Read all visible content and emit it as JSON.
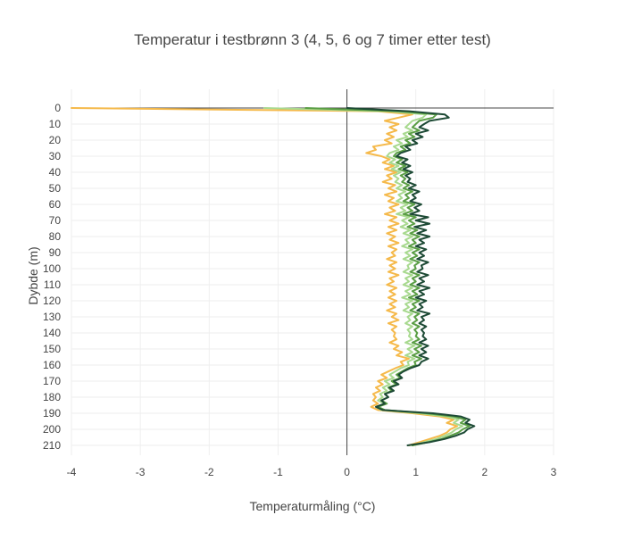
{
  "chart_data": {
    "type": "line",
    "title": "Temperatur i testbrønn 3 (4, 5, 6 og 7 timer etter test)",
    "xlabel": "Temperaturmåling (°C)",
    "ylabel": "Dybde (m)",
    "xlim": [
      -4,
      3
    ],
    "ylim": [
      0,
      215
    ],
    "y_reversed": true,
    "grid": true,
    "legend": "none",
    "x_ticks": [
      "-4",
      "-3",
      "-2",
      "-1",
      "0",
      "1",
      "2",
      "3"
    ],
    "y_ticks": [
      "0",
      "10",
      "20",
      "30",
      "40",
      "50",
      "60",
      "70",
      "80",
      "90",
      "100",
      "110",
      "120",
      "130",
      "140",
      "150",
      "160",
      "170",
      "180",
      "190",
      "200",
      "210"
    ],
    "colors": [
      "#f5b94a",
      "#a8d98f",
      "#5a9e45",
      "#1d4a35"
    ],
    "series": [
      {
        "color": "#f5b94a",
        "depth": [
          0,
          2,
          4,
          6,
          8,
          10,
          12,
          14,
          16,
          18,
          20,
          22,
          24,
          26,
          28,
          30,
          32,
          34,
          36,
          38,
          40,
          42,
          44,
          46,
          48,
          50,
          52,
          54,
          56,
          58,
          60,
          62,
          64,
          66,
          68,
          70,
          72,
          74,
          76,
          78,
          80,
          82,
          84,
          86,
          88,
          90,
          92,
          94,
          96,
          98,
          100,
          102,
          104,
          106,
          108,
          110,
          112,
          114,
          116,
          118,
          120,
          122,
          124,
          126,
          128,
          130,
          132,
          134,
          136,
          138,
          140,
          142,
          144,
          146,
          148,
          150,
          152,
          154,
          156,
          158,
          160,
          162,
          164,
          166,
          168,
          170,
          172,
          174,
          176,
          178,
          180,
          182,
          184,
          186,
          188,
          190,
          192,
          194,
          196,
          198,
          200,
          202,
          204,
          206,
          208,
          210
        ],
        "temp": [
          -4.0,
          0.45,
          0.95,
          0.75,
          0.55,
          0.75,
          0.62,
          0.72,
          0.58,
          0.68,
          0.55,
          0.65,
          0.38,
          0.42,
          0.28,
          0.5,
          0.62,
          0.52,
          0.68,
          0.55,
          0.72,
          0.58,
          0.65,
          0.52,
          0.7,
          0.6,
          0.72,
          0.55,
          0.68,
          0.6,
          0.75,
          0.62,
          0.7,
          0.55,
          0.72,
          0.62,
          0.75,
          0.6,
          0.72,
          0.58,
          0.7,
          0.62,
          0.75,
          0.6,
          0.72,
          0.65,
          0.7,
          0.58,
          0.72,
          0.62,
          0.7,
          0.6,
          0.75,
          0.62,
          0.68,
          0.58,
          0.72,
          0.62,
          0.7,
          0.6,
          0.72,
          0.62,
          0.7,
          0.58,
          0.72,
          0.65,
          0.75,
          0.6,
          0.72,
          0.65,
          0.7,
          0.68,
          0.72,
          0.62,
          0.75,
          0.68,
          0.8,
          0.72,
          0.9,
          0.78,
          0.82,
          0.7,
          0.6,
          0.5,
          0.58,
          0.45,
          0.52,
          0.42,
          0.48,
          0.38,
          0.42,
          0.38,
          0.45,
          0.35,
          0.45,
          0.95,
          1.35,
          1.55,
          1.45,
          1.6,
          1.5,
          1.45,
          1.35,
          1.2,
          1.05,
          0.9
        ]
      },
      {
        "color": "#a8d98f",
        "depth": [
          0,
          2,
          4,
          6,
          8,
          10,
          12,
          14,
          16,
          18,
          20,
          22,
          24,
          26,
          28,
          30,
          32,
          34,
          36,
          38,
          40,
          42,
          44,
          46,
          48,
          50,
          52,
          54,
          56,
          58,
          60,
          62,
          64,
          66,
          68,
          70,
          72,
          74,
          76,
          78,
          80,
          82,
          84,
          86,
          88,
          90,
          92,
          94,
          96,
          98,
          100,
          102,
          104,
          106,
          108,
          110,
          112,
          114,
          116,
          118,
          120,
          122,
          124,
          126,
          128,
          130,
          132,
          134,
          136,
          138,
          140,
          142,
          144,
          146,
          148,
          150,
          152,
          154,
          156,
          158,
          160,
          162,
          164,
          166,
          168,
          170,
          172,
          174,
          176,
          178,
          180,
          182,
          184,
          186,
          188,
          190,
          192,
          194,
          196,
          198,
          200,
          202,
          204,
          206,
          208,
          210
        ],
        "temp": [
          -1.2,
          0.6,
          1.15,
          1.1,
          0.95,
          0.9,
          0.85,
          0.95,
          0.82,
          0.88,
          0.72,
          0.8,
          0.68,
          0.75,
          0.62,
          0.58,
          0.7,
          0.62,
          0.75,
          0.65,
          0.78,
          0.68,
          0.75,
          0.7,
          0.8,
          0.72,
          0.85,
          0.75,
          0.8,
          0.72,
          0.88,
          0.78,
          0.85,
          0.72,
          0.9,
          0.8,
          0.88,
          0.78,
          0.92,
          0.82,
          0.95,
          0.85,
          0.9,
          0.8,
          0.95,
          0.85,
          0.92,
          0.82,
          0.95,
          0.88,
          0.9,
          0.82,
          0.95,
          0.85,
          0.9,
          0.82,
          0.95,
          0.85,
          0.92,
          0.8,
          0.95,
          0.85,
          0.9,
          0.82,
          0.95,
          0.88,
          0.92,
          0.85,
          0.95,
          0.88,
          0.92,
          0.9,
          0.95,
          0.85,
          0.98,
          0.88,
          0.95,
          0.85,
          0.98,
          0.88,
          0.9,
          0.78,
          0.7,
          0.62,
          0.68,
          0.55,
          0.62,
          0.52,
          0.58,
          0.48,
          0.52,
          0.45,
          0.55,
          0.42,
          0.5,
          1.05,
          1.45,
          1.62,
          1.55,
          1.68,
          1.58,
          1.52,
          1.42,
          1.3,
          1.12,
          0.95
        ]
      },
      {
        "color": "#5a9e45",
        "depth": [
          0,
          2,
          4,
          6,
          8,
          10,
          12,
          14,
          16,
          18,
          20,
          22,
          24,
          26,
          28,
          30,
          32,
          34,
          36,
          38,
          40,
          42,
          44,
          46,
          48,
          50,
          52,
          54,
          56,
          58,
          60,
          62,
          64,
          66,
          68,
          70,
          72,
          74,
          76,
          78,
          80,
          82,
          84,
          86,
          88,
          90,
          92,
          94,
          96,
          98,
          100,
          102,
          104,
          106,
          108,
          110,
          112,
          114,
          116,
          118,
          120,
          122,
          124,
          126,
          128,
          130,
          132,
          134,
          136,
          138,
          140,
          142,
          144,
          146,
          148,
          150,
          152,
          154,
          156,
          158,
          160,
          162,
          164,
          166,
          168,
          170,
          172,
          174,
          176,
          178,
          180,
          182,
          184,
          186,
          188,
          190,
          192,
          194,
          196,
          198,
          200,
          202,
          204,
          206,
          208,
          210
        ],
        "temp": [
          -0.6,
          0.75,
          1.3,
          1.25,
          1.05,
          1.0,
          0.95,
          1.05,
          0.9,
          0.98,
          0.85,
          0.92,
          0.78,
          0.85,
          0.72,
          0.68,
          0.8,
          0.72,
          0.85,
          0.75,
          0.88,
          0.78,
          0.85,
          0.8,
          0.9,
          0.82,
          0.95,
          0.85,
          0.9,
          0.82,
          0.98,
          0.88,
          0.95,
          0.82,
          1.0,
          0.9,
          0.98,
          0.88,
          1.02,
          0.92,
          1.05,
          0.95,
          1.0,
          0.9,
          1.05,
          0.95,
          1.02,
          0.92,
          1.05,
          0.98,
          1.0,
          0.92,
          1.05,
          0.95,
          1.0,
          0.92,
          1.05,
          0.95,
          1.02,
          0.9,
          1.05,
          0.95,
          1.0,
          0.92,
          1.05,
          0.98,
          1.02,
          0.95,
          1.05,
          0.98,
          1.02,
          1.0,
          1.05,
          0.95,
          1.08,
          0.98,
          1.05,
          0.95,
          1.08,
          0.98,
          1.0,
          0.88,
          0.8,
          0.72,
          0.78,
          0.65,
          0.72,
          0.6,
          0.65,
          0.55,
          0.6,
          0.5,
          0.58,
          0.45,
          0.55,
          1.15,
          1.55,
          1.72,
          1.65,
          1.78,
          1.68,
          1.62,
          1.5,
          1.38,
          1.18,
          0.95
        ]
      },
      {
        "color": "#1d4a35",
        "depth": [
          0,
          2,
          4,
          6,
          8,
          10,
          12,
          14,
          16,
          18,
          20,
          22,
          24,
          26,
          28,
          30,
          32,
          34,
          36,
          38,
          40,
          42,
          44,
          46,
          48,
          50,
          52,
          54,
          56,
          58,
          60,
          62,
          64,
          66,
          68,
          70,
          72,
          74,
          76,
          78,
          80,
          82,
          84,
          86,
          88,
          90,
          92,
          94,
          96,
          98,
          100,
          102,
          104,
          106,
          108,
          110,
          112,
          114,
          116,
          118,
          120,
          122,
          124,
          126,
          128,
          130,
          132,
          134,
          136,
          138,
          140,
          142,
          144,
          146,
          148,
          150,
          152,
          154,
          156,
          158,
          160,
          162,
          164,
          166,
          168,
          170,
          172,
          174,
          176,
          178,
          180,
          182,
          184,
          186,
          188,
          190,
          192,
          194,
          196,
          198,
          200,
          202,
          204,
          206,
          208,
          210
        ],
        "temp": [
          0.0,
          0.9,
          1.42,
          1.48,
          1.2,
          1.12,
          1.05,
          1.18,
          1.0,
          1.1,
          0.95,
          1.02,
          0.85,
          0.92,
          0.78,
          0.72,
          0.88,
          0.8,
          0.92,
          0.82,
          0.95,
          0.85,
          0.92,
          0.88,
          1.0,
          0.9,
          1.05,
          0.95,
          1.0,
          0.92,
          1.08,
          0.98,
          1.05,
          0.92,
          1.18,
          1.0,
          1.2,
          0.98,
          1.15,
          1.02,
          1.2,
          1.05,
          1.12,
          1.0,
          1.15,
          1.05,
          1.12,
          1.02,
          1.18,
          1.08,
          1.1,
          1.02,
          1.18,
          1.05,
          1.12,
          1.02,
          1.2,
          1.05,
          1.12,
          1.0,
          1.15,
          1.05,
          1.1,
          1.02,
          1.2,
          1.08,
          1.12,
          1.05,
          1.15,
          1.08,
          1.12,
          1.1,
          1.15,
          1.05,
          1.18,
          1.08,
          1.15,
          1.05,
          1.18,
          1.08,
          1.05,
          0.92,
          0.82,
          0.75,
          0.8,
          0.68,
          0.75,
          0.62,
          0.68,
          0.55,
          0.6,
          0.5,
          0.55,
          0.42,
          0.52,
          1.25,
          1.65,
          1.78,
          1.72,
          1.85,
          1.75,
          1.7,
          1.58,
          1.42,
          1.2,
          0.88
        ]
      }
    ]
  }
}
